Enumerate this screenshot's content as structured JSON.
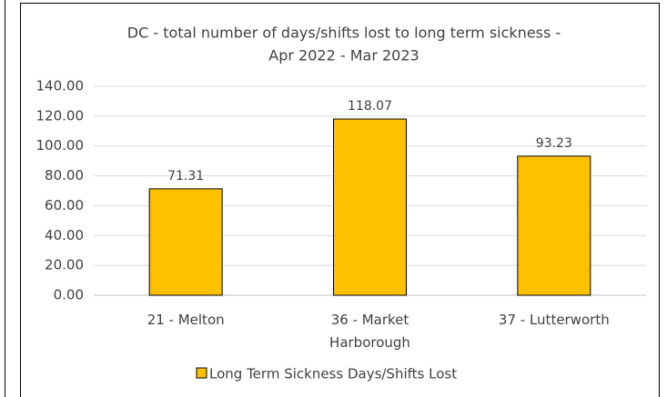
{
  "chart_data": {
    "type": "bar",
    "title": [
      "DC - total number of days/shifts lost to long term sickness -",
      "Apr 2022 - Mar 2023"
    ],
    "categories": [
      "21 - Melton",
      "36 - Market Harborough",
      "37 - Lutterworth"
    ],
    "series": [
      {
        "name": "Long Term Sickness Days/Shifts Lost",
        "color": "#ffc000",
        "values": [
          71.31,
          118.07,
          93.23
        ]
      }
    ],
    "ylim": [
      0,
      140
    ],
    "yticks": [
      {
        "value": 0,
        "label": "0.00"
      },
      {
        "value": 20,
        "label": "20.00"
      },
      {
        "value": 40,
        "label": "40.00"
      },
      {
        "value": 60,
        "label": "60.00"
      },
      {
        "value": 80,
        "label": "80.00"
      },
      {
        "value": 100,
        "label": "100.00"
      },
      {
        "value": 120,
        "label": "120.00"
      },
      {
        "value": 140,
        "label": "140.00"
      }
    ],
    "grid": true,
    "legend": "bottom"
  }
}
